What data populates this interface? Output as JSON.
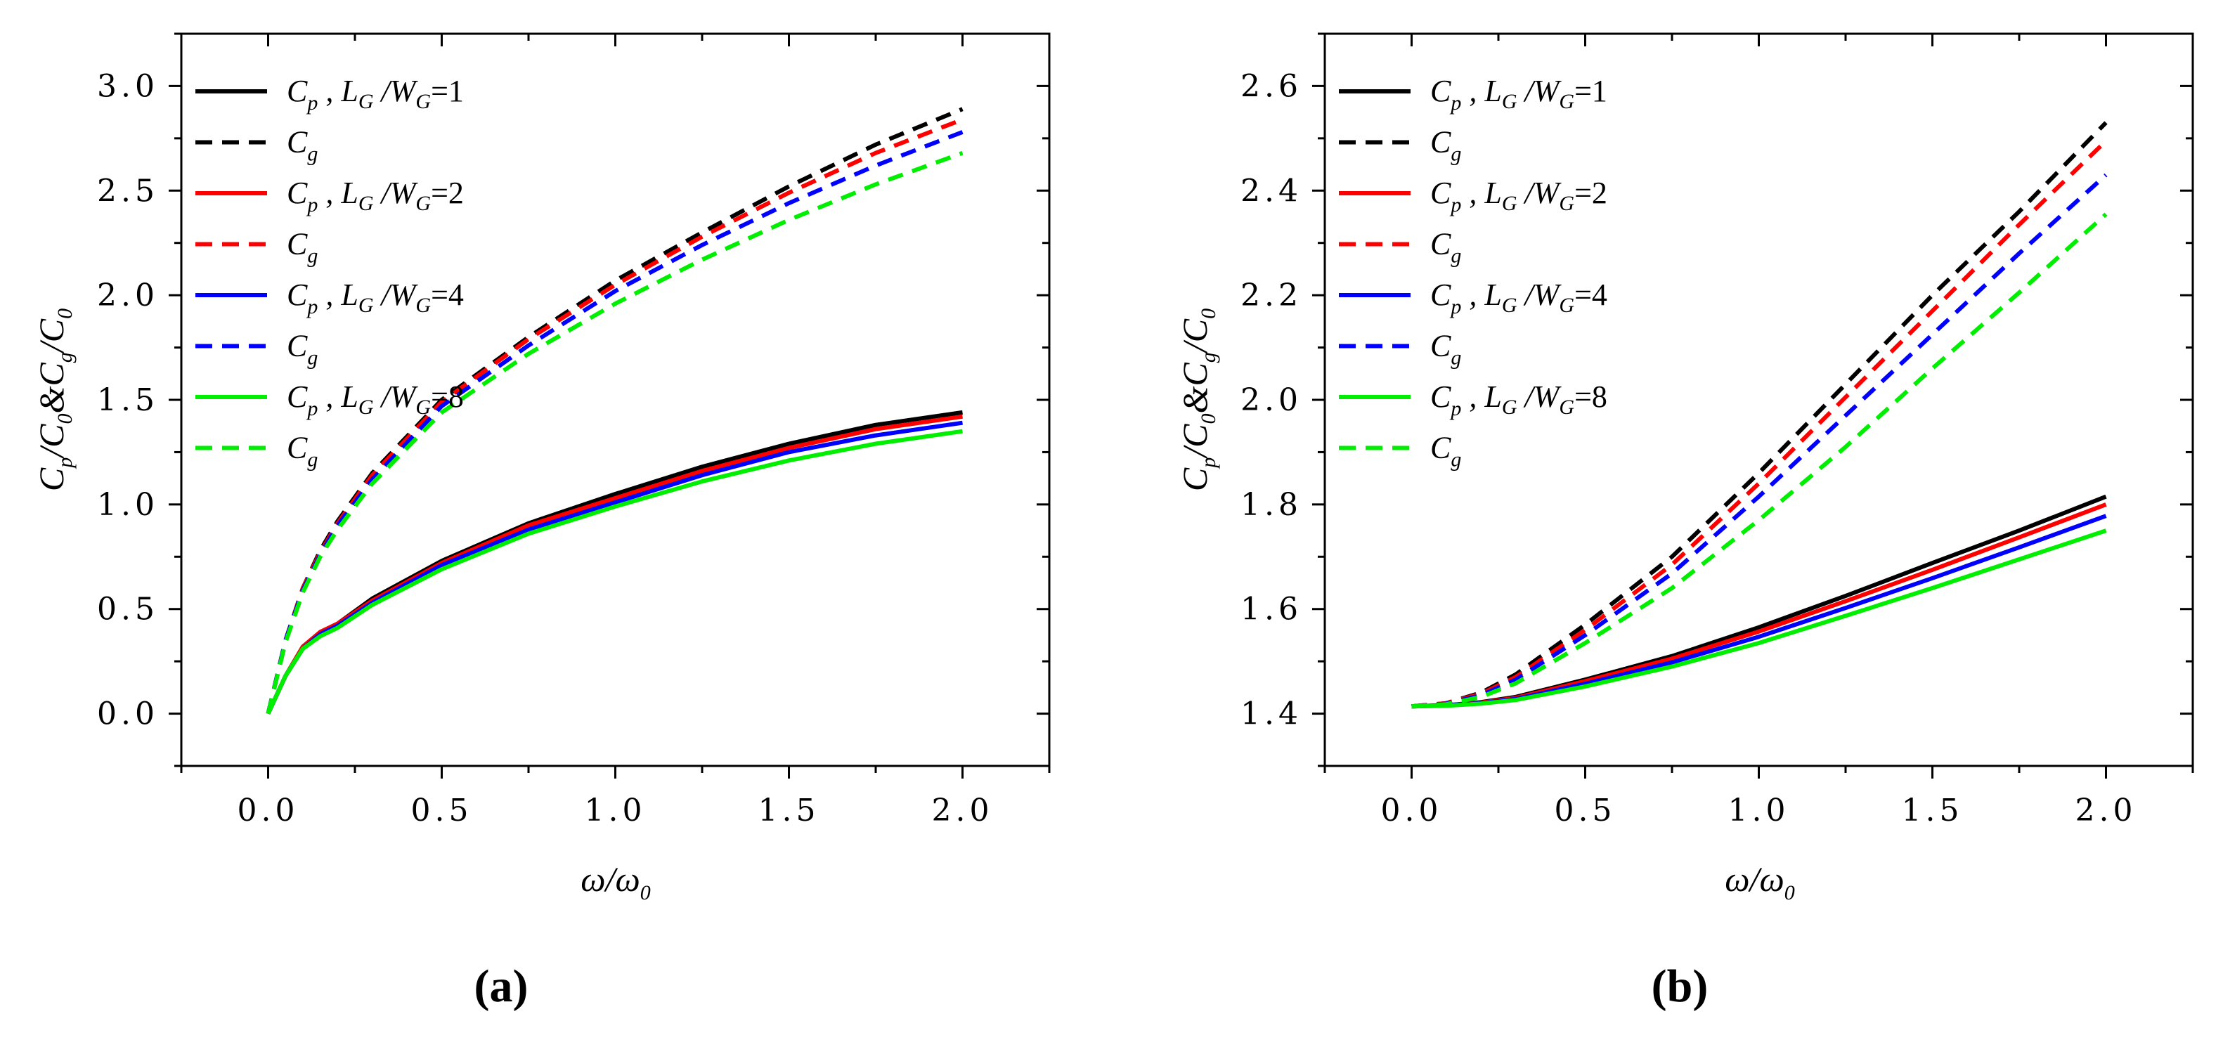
{
  "figure": {
    "panel_labels": [
      "(a)",
      "(b)"
    ]
  },
  "chart_data": [
    {
      "type": "line",
      "panel": "(a)",
      "xlabel": "ω/ω0",
      "ylabel": "Cp/C0&Cg/C0",
      "xlim": [
        -0.25,
        2.25
      ],
      "ylim": [
        -0.25,
        3.25
      ],
      "xticks": [
        0.0,
        0.5,
        1.0,
        1.5,
        2.0
      ],
      "yticks": [
        0.0,
        0.5,
        1.0,
        1.5,
        2.0,
        2.5,
        3.0
      ],
      "xtick_labels": [
        "0.0",
        "0.5",
        "1.0",
        "1.5",
        "2.0"
      ],
      "ytick_labels": [
        "0.0",
        "0.5",
        "1.0",
        "1.5",
        "2.0",
        "2.5",
        "3.0"
      ],
      "legend_position": "top-left",
      "series": [
        {
          "name": "Cp , LG /WG=1",
          "legend_main": "C",
          "legend_sub": "p",
          "legend_ratio": "=1",
          "color": "#000000",
          "dash": false,
          "x": [
            0,
            0.05,
            0.1,
            0.15,
            0.2,
            0.3,
            0.5,
            0.75,
            1.0,
            1.25,
            1.5,
            1.75,
            2.0
          ],
          "values": [
            0,
            0.18,
            0.32,
            0.39,
            0.43,
            0.55,
            0.73,
            0.91,
            1.05,
            1.18,
            1.29,
            1.38,
            1.44
          ]
        },
        {
          "name": "Cg",
          "legend_main": "C",
          "legend_sub": "g",
          "legend_ratio": "",
          "color": "#000000",
          "dash": true,
          "x": [
            0,
            0.05,
            0.1,
            0.15,
            0.2,
            0.3,
            0.5,
            0.75,
            1.0,
            1.25,
            1.5,
            1.75,
            2.0
          ],
          "values": [
            0,
            0.35,
            0.6,
            0.78,
            0.92,
            1.15,
            1.5,
            1.8,
            2.07,
            2.3,
            2.52,
            2.72,
            2.89
          ]
        },
        {
          "name": "Cp , LG /WG=2",
          "legend_main": "C",
          "legend_sub": "p",
          "legend_ratio": "=2",
          "color": "#ff0000",
          "dash": false,
          "x": [
            0,
            0.05,
            0.1,
            0.15,
            0.2,
            0.3,
            0.5,
            0.75,
            1.0,
            1.25,
            1.5,
            1.75,
            2.0
          ],
          "values": [
            0,
            0.18,
            0.32,
            0.39,
            0.43,
            0.54,
            0.72,
            0.9,
            1.03,
            1.16,
            1.27,
            1.36,
            1.42
          ]
        },
        {
          "name": "Cg",
          "legend_main": "C",
          "legend_sub": "g",
          "legend_ratio": "",
          "color": "#ff0000",
          "dash": true,
          "x": [
            0,
            0.05,
            0.1,
            0.15,
            0.2,
            0.3,
            0.5,
            0.75,
            1.0,
            1.25,
            1.5,
            1.75,
            2.0
          ],
          "values": [
            0,
            0.35,
            0.6,
            0.77,
            0.91,
            1.14,
            1.49,
            1.79,
            2.05,
            2.28,
            2.49,
            2.68,
            2.84
          ]
        },
        {
          "name": "Cp , LG /WG=4",
          "legend_main": "C",
          "legend_sub": "p",
          "legend_ratio": "=4",
          "color": "#0000ff",
          "dash": false,
          "x": [
            0,
            0.05,
            0.1,
            0.15,
            0.2,
            0.3,
            0.5,
            0.75,
            1.0,
            1.25,
            1.5,
            1.75,
            2.0
          ],
          "values": [
            0,
            0.18,
            0.31,
            0.38,
            0.42,
            0.53,
            0.71,
            0.88,
            1.01,
            1.14,
            1.25,
            1.33,
            1.39
          ]
        },
        {
          "name": "Cg",
          "legend_main": "C",
          "legend_sub": "g",
          "legend_ratio": "",
          "color": "#0000ff",
          "dash": true,
          "x": [
            0,
            0.05,
            0.1,
            0.15,
            0.2,
            0.3,
            0.5,
            0.75,
            1.0,
            1.25,
            1.5,
            1.75,
            2.0
          ],
          "values": [
            0,
            0.35,
            0.59,
            0.76,
            0.9,
            1.12,
            1.47,
            1.76,
            2.02,
            2.24,
            2.44,
            2.62,
            2.78
          ]
        },
        {
          "name": "Cp , LG /WG=8",
          "legend_main": "C",
          "legend_sub": "p",
          "legend_ratio": "=8",
          "color": "#00ee00",
          "dash": false,
          "x": [
            0,
            0.05,
            0.1,
            0.15,
            0.2,
            0.3,
            0.5,
            0.75,
            1.0,
            1.25,
            1.5,
            1.75,
            2.0
          ],
          "values": [
            0,
            0.18,
            0.31,
            0.37,
            0.41,
            0.52,
            0.69,
            0.86,
            0.99,
            1.11,
            1.21,
            1.29,
            1.35
          ]
        },
        {
          "name": "Cg",
          "legend_main": "C",
          "legend_sub": "g",
          "legend_ratio": "",
          "color": "#00ee00",
          "dash": true,
          "x": [
            0,
            0.05,
            0.1,
            0.15,
            0.2,
            0.3,
            0.5,
            0.75,
            1.0,
            1.25,
            1.5,
            1.75,
            2.0
          ],
          "values": [
            0,
            0.34,
            0.58,
            0.75,
            0.88,
            1.1,
            1.44,
            1.72,
            1.96,
            2.17,
            2.36,
            2.53,
            2.68
          ]
        }
      ]
    },
    {
      "type": "line",
      "panel": "(b)",
      "xlabel": "ω/ω0",
      "ylabel": "Cp/C0&Cg/C0",
      "xlim": [
        -0.25,
        2.25
      ],
      "ylim": [
        1.3,
        2.7
      ],
      "xticks": [
        0.0,
        0.5,
        1.0,
        1.5,
        2.0
      ],
      "yticks": [
        1.4,
        1.6,
        1.8,
        2.0,
        2.2,
        2.4,
        2.6
      ],
      "xtick_labels": [
        "0.0",
        "0.5",
        "1.0",
        "1.5",
        "2.0"
      ],
      "ytick_labels": [
        "1.4",
        "1.6",
        "1.8",
        "2.0",
        "2.2",
        "2.4",
        "2.6"
      ],
      "legend_position": "top-left",
      "series": [
        {
          "name": "Cp , LG /WG=1",
          "legend_main": "C",
          "legend_sub": "p",
          "legend_ratio": "=1",
          "color": "#000000",
          "dash": false,
          "x": [
            0,
            0.1,
            0.2,
            0.3,
            0.5,
            0.75,
            1.0,
            1.25,
            1.5,
            1.75,
            2.0
          ],
          "values": [
            1.414,
            1.416,
            1.422,
            1.432,
            1.465,
            1.51,
            1.565,
            1.625,
            1.688,
            1.75,
            1.815
          ]
        },
        {
          "name": "Cg",
          "legend_main": "C",
          "legend_sub": "g",
          "legend_ratio": "",
          "color": "#000000",
          "dash": true,
          "x": [
            0,
            0.1,
            0.2,
            0.3,
            0.5,
            0.75,
            1.0,
            1.25,
            1.5,
            1.75,
            2.0
          ],
          "values": [
            1.414,
            1.42,
            1.44,
            1.475,
            1.57,
            1.7,
            1.86,
            2.03,
            2.2,
            2.36,
            2.53
          ]
        },
        {
          "name": "Cp , LG /WG=2",
          "legend_main": "C",
          "legend_sub": "p",
          "legend_ratio": "=2",
          "color": "#ff0000",
          "dash": false,
          "x": [
            0,
            0.1,
            0.2,
            0.3,
            0.5,
            0.75,
            1.0,
            1.25,
            1.5,
            1.75,
            2.0
          ],
          "values": [
            1.414,
            1.416,
            1.421,
            1.43,
            1.462,
            1.505,
            1.557,
            1.615,
            1.675,
            1.737,
            1.8
          ]
        },
        {
          "name": "Cg",
          "legend_main": "C",
          "legend_sub": "g",
          "legend_ratio": "",
          "color": "#ff0000",
          "dash": true,
          "x": [
            0,
            0.1,
            0.2,
            0.3,
            0.5,
            0.75,
            1.0,
            1.25,
            1.5,
            1.75,
            2.0
          ],
          "values": [
            1.414,
            1.42,
            1.438,
            1.47,
            1.56,
            1.685,
            1.84,
            2.005,
            2.17,
            2.335,
            2.495
          ]
        },
        {
          "name": "Cp , LG /WG=4",
          "legend_main": "C",
          "legend_sub": "p",
          "legend_ratio": "=4",
          "color": "#0000ff",
          "dash": false,
          "x": [
            0,
            0.1,
            0.2,
            0.3,
            0.5,
            0.75,
            1.0,
            1.25,
            1.5,
            1.75,
            2.0
          ],
          "values": [
            1.414,
            1.416,
            1.42,
            1.428,
            1.457,
            1.498,
            1.547,
            1.602,
            1.659,
            1.718,
            1.778
          ]
        },
        {
          "name": "Cg",
          "legend_main": "C",
          "legend_sub": "g",
          "legend_ratio": "",
          "color": "#0000ff",
          "dash": true,
          "x": [
            0,
            0.1,
            0.2,
            0.3,
            0.5,
            0.75,
            1.0,
            1.25,
            1.5,
            1.75,
            2.0
          ],
          "values": [
            1.414,
            1.419,
            1.435,
            1.465,
            1.55,
            1.668,
            1.815,
            1.97,
            2.125,
            2.28,
            2.43
          ]
        },
        {
          "name": "Cp , LG /WG=8",
          "legend_main": "C",
          "legend_sub": "p",
          "legend_ratio": "=8",
          "color": "#00ee00",
          "dash": false,
          "x": [
            0,
            0.1,
            0.2,
            0.3,
            0.5,
            0.75,
            1.0,
            1.25,
            1.5,
            1.75,
            2.0
          ],
          "values": [
            1.414,
            1.415,
            1.419,
            1.426,
            1.452,
            1.49,
            1.535,
            1.587,
            1.64,
            1.695,
            1.75
          ]
        },
        {
          "name": "Cg",
          "legend_main": "C",
          "legend_sub": "g",
          "legend_ratio": "",
          "color": "#00ee00",
          "dash": true,
          "x": [
            0,
            0.1,
            0.2,
            0.3,
            0.5,
            0.75,
            1.0,
            1.25,
            1.5,
            1.75,
            2.0
          ],
          "values": [
            1.414,
            1.418,
            1.432,
            1.458,
            1.535,
            1.64,
            1.77,
            1.91,
            2.06,
            2.205,
            2.355
          ]
        }
      ]
    }
  ]
}
